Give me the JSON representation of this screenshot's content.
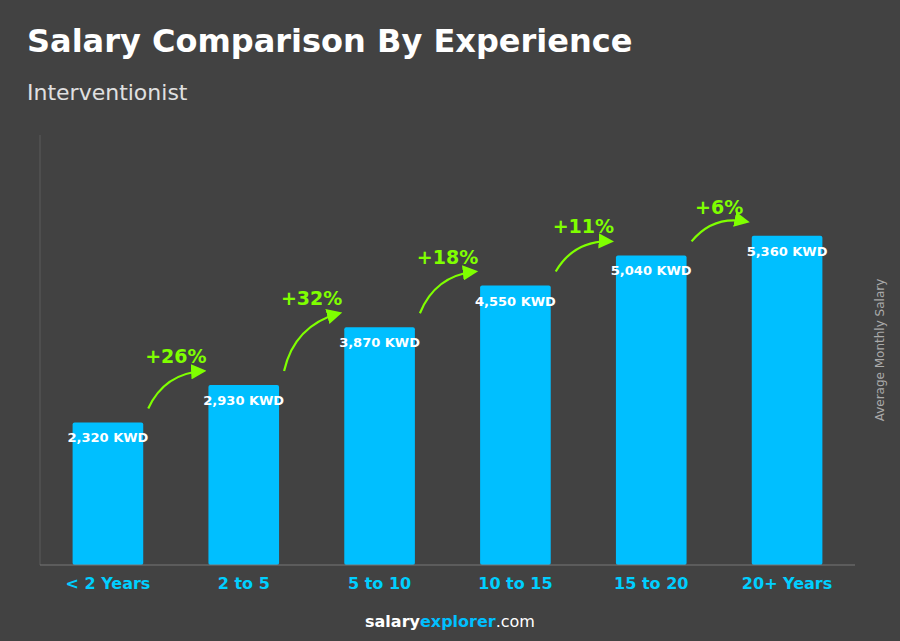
{
  "chart_data": {
    "type": "bar",
    "title": "Salary Comparison By Experience",
    "subtitle": "Interventionist",
    "ylabel": "Average Monthly Salary",
    "categories": [
      "< 2 Years",
      "2 to 5",
      "5 to 10",
      "10 to 15",
      "15 to 20",
      "20+ Years"
    ],
    "values": [
      2320,
      2930,
      3870,
      4550,
      5040,
      5360
    ],
    "value_labels": [
      "2,320 KWD",
      "2,930 KWD",
      "3,870 KWD",
      "4,550 KWD",
      "5,040 KWD",
      "5,360 KWD"
    ],
    "data_labels": true,
    "color": "#00BFFF",
    "ylim": [
      0,
      7000
    ],
    "grid": false,
    "tick_labels": "x",
    "annotations": [
      "+26%",
      "+32%",
      "+18%",
      "+11%",
      "+6%"
    ],
    "footer": [
      "salary",
      "explorer",
      ".com"
    ]
  }
}
